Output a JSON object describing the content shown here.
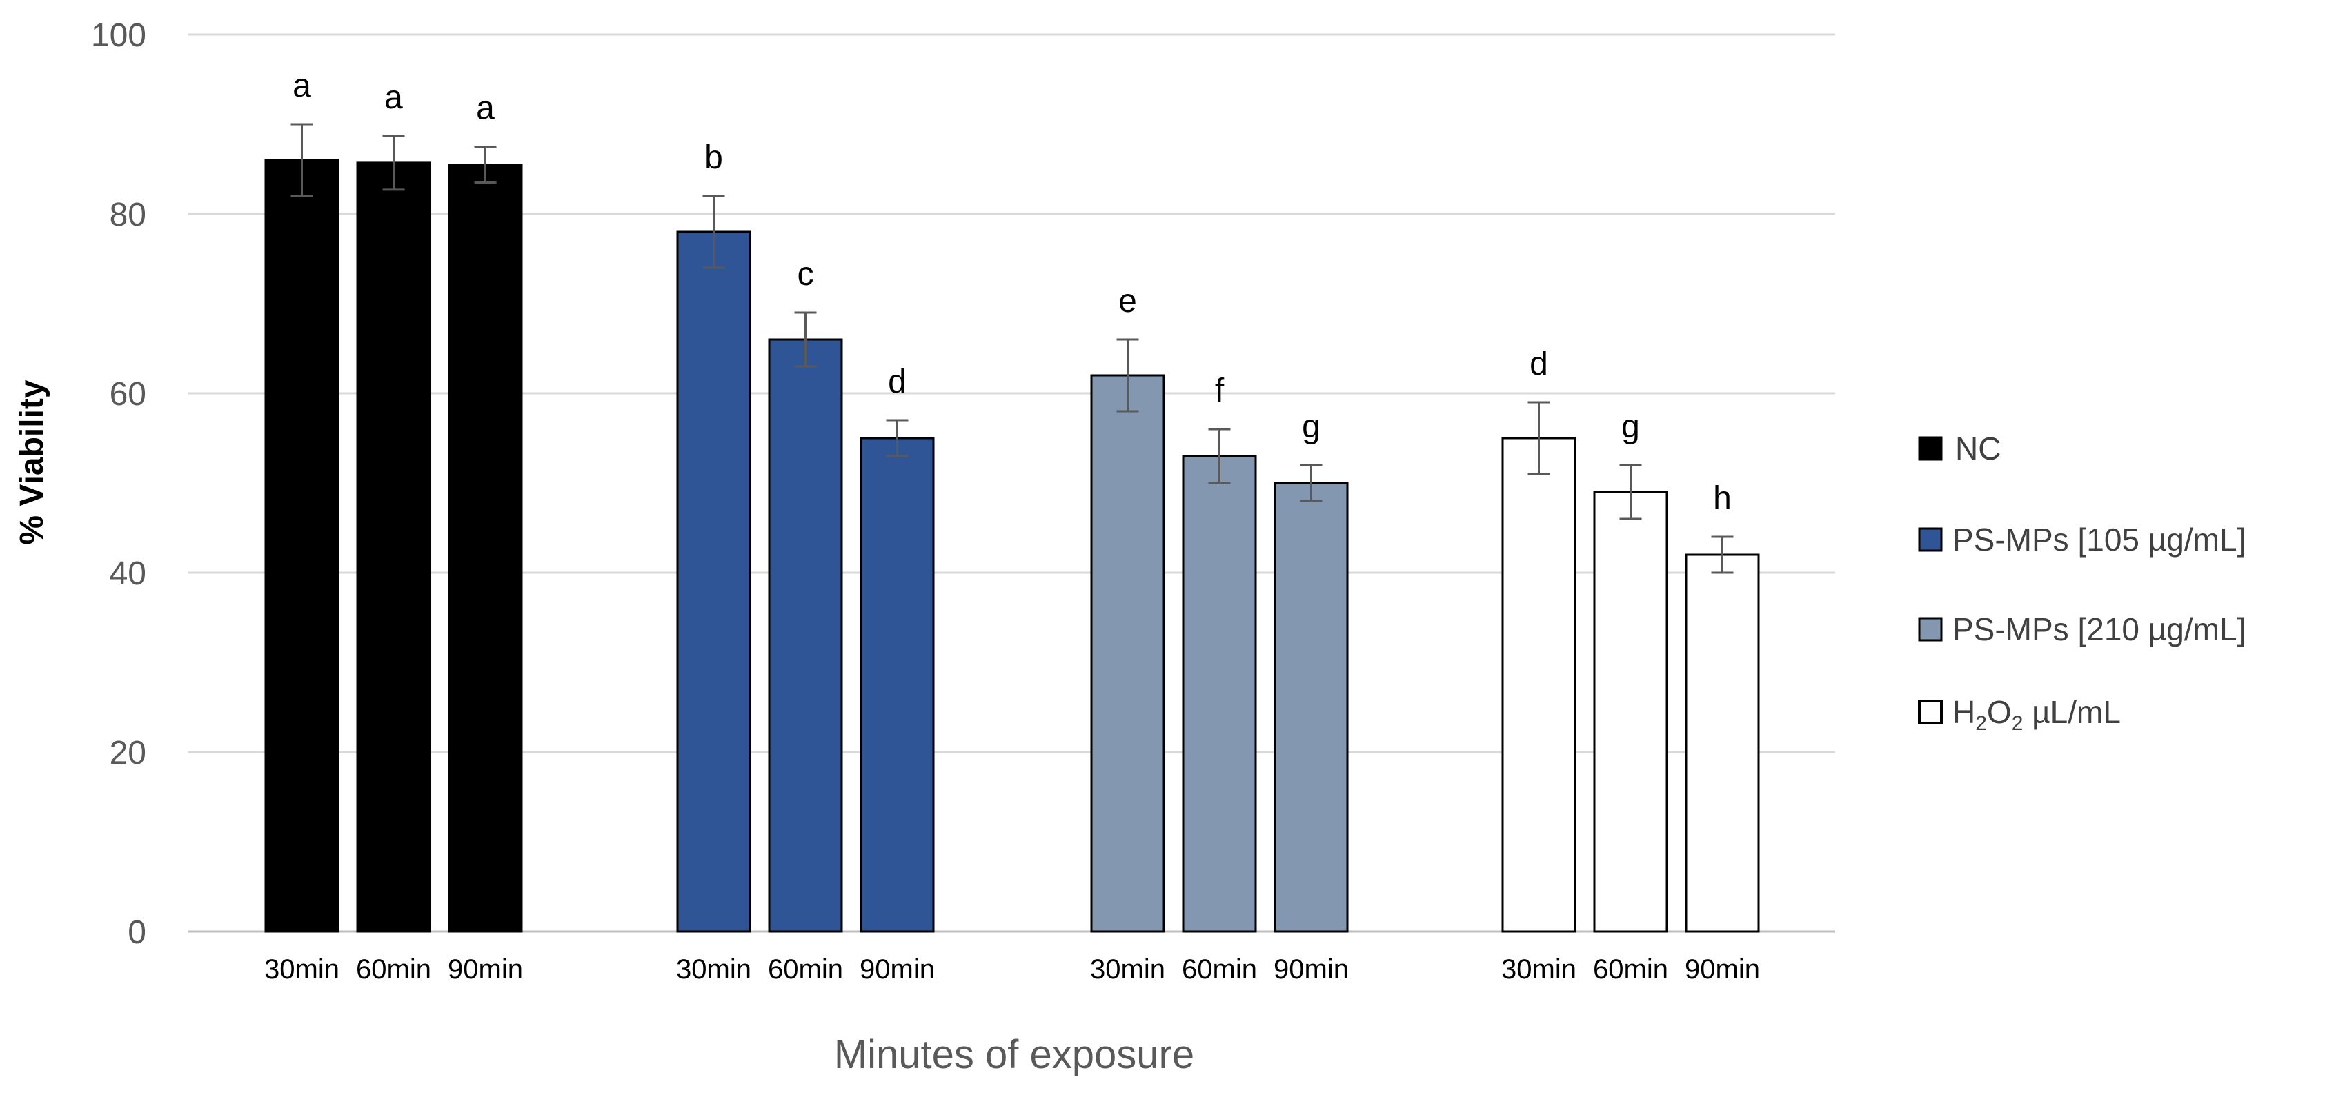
{
  "chart_data": {
    "type": "bar",
    "title": "",
    "ylabel": "% Viability",
    "xlabel": "Minutes of exposure",
    "ylim": [
      0,
      100
    ],
    "yticks": [
      0,
      20,
      40,
      60,
      80,
      100
    ],
    "grid": true,
    "legend_position": "right",
    "bar_labels": [
      "30min",
      "60min",
      "90min"
    ],
    "series": [
      {
        "name": "NC",
        "legend_label": "NC",
        "color": "#000000",
        "values": [
          86,
          85.7,
          85.5
        ],
        "errors": [
          4,
          3,
          2
        ],
        "significance": [
          "a",
          "a",
          "a"
        ]
      },
      {
        "name": "PS-MPs [105 µg/mL]",
        "legend_label": "PS-MPs [105 µg/mL]",
        "color": "#2f5597",
        "values": [
          78,
          66,
          55
        ],
        "errors": [
          4,
          3,
          2
        ],
        "significance": [
          "b",
          "c",
          "d"
        ]
      },
      {
        "name": "PS-MPs [210 µg/mL]",
        "legend_label": "PS-MPs [210 µg/mL]",
        "color": "#8497b0",
        "values": [
          62,
          53,
          50
        ],
        "errors": [
          4,
          3,
          2
        ],
        "significance": [
          "e",
          "f",
          "g"
        ]
      },
      {
        "name": "H2O2 µL/mL",
        "legend_main": "H",
        "legend_sub1": "2",
        "legend_mid": "O",
        "legend_sub2": "2",
        "legend_rest": " µL/mL",
        "color": "#ffffff",
        "values": [
          55,
          49,
          42
        ],
        "errors": [
          4,
          3,
          2
        ],
        "significance": [
          "d",
          "g",
          "h"
        ]
      }
    ]
  }
}
